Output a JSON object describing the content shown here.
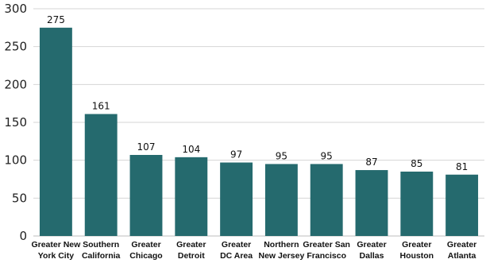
{
  "chart_data": {
    "type": "bar",
    "categories": [
      [
        "Greater New",
        "York City"
      ],
      [
        "Southern",
        "California"
      ],
      [
        "Greater",
        "Chicago"
      ],
      [
        "Greater",
        "Detroit"
      ],
      [
        "Greater",
        "DC Area"
      ],
      [
        "Northern",
        "New Jersey"
      ],
      [
        "Greater San",
        "Francisco"
      ],
      [
        "Greater",
        "Dallas"
      ],
      [
        "Greater",
        "Houston"
      ],
      [
        "Greater",
        "Atlanta"
      ]
    ],
    "values": [
      275,
      161,
      107,
      104,
      97,
      95,
      95,
      87,
      85,
      81
    ],
    "data_labels": [
      "275",
      "161",
      "107",
      "104",
      "97",
      "95",
      "95",
      "87",
      "85",
      "81"
    ],
    "ylim": [
      0,
      300
    ],
    "yticks": [
      0,
      50,
      100,
      150,
      200,
      250,
      300
    ],
    "grid": true,
    "legend": "none",
    "bar_color": "#256a6e"
  }
}
